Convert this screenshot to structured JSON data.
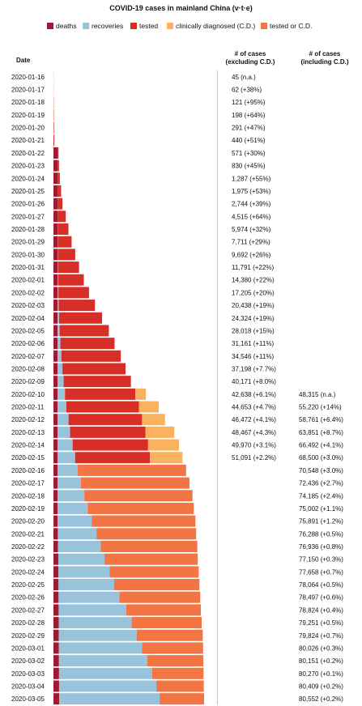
{
  "colors": {
    "deaths": "#9e1a32",
    "recoveries": "#99c3db",
    "tested": "#d72f27",
    "clinically_diagnosed": "#f9b35f",
    "tested_or_cd": "#f37543"
  },
  "chart_data": {
    "type": "bar",
    "orientation": "horizontal",
    "stacked": true,
    "title": "COVID-19 cases in mainland China (v·t·e)",
    "legend": [
      "deaths",
      "recoveries",
      "tested",
      "clinically diagnosed (C.D.)",
      "tested or C.D."
    ],
    "legend_position": "top",
    "headers": {
      "date": "Date",
      "excluding": "# of cases (excluding C.D.)",
      "including": "# of cases (including C.D.)"
    },
    "rows": [
      {
        "date": "2020-01-16",
        "deaths": 0,
        "recoveries": 0,
        "tested": 45,
        "cd": 0,
        "tested_or_cd": 0,
        "excl_label": "45 (n.a.)",
        "incl_label": ""
      },
      {
        "date": "2020-01-17",
        "deaths": 0,
        "recoveries": 0,
        "tested": 62,
        "cd": 0,
        "tested_or_cd": 0,
        "excl_label": "62 (+38%)",
        "incl_label": ""
      },
      {
        "date": "2020-01-18",
        "deaths": 0,
        "recoveries": 0,
        "tested": 121,
        "cd": 0,
        "tested_or_cd": 0,
        "excl_label": "121 (+95%)",
        "incl_label": ""
      },
      {
        "date": "2020-01-19",
        "deaths": 0,
        "recoveries": 0,
        "tested": 198,
        "cd": 0,
        "tested_or_cd": 0,
        "excl_label": "198 (+64%)",
        "incl_label": ""
      },
      {
        "date": "2020-01-20",
        "deaths": 0,
        "recoveries": 0,
        "tested": 291,
        "cd": 0,
        "tested_or_cd": 0,
        "excl_label": "291 (+47%)",
        "incl_label": ""
      },
      {
        "date": "2020-01-21",
        "deaths": 0,
        "recoveries": 0,
        "tested": 440,
        "cd": 0,
        "tested_or_cd": 0,
        "excl_label": "440 (+51%)",
        "incl_label": ""
      },
      {
        "date": "2020-01-22",
        "deaths": 17,
        "recoveries": 28,
        "tested": 526,
        "cd": 0,
        "tested_or_cd": 0,
        "excl_label": "571 (+30%)",
        "incl_label": ""
      },
      {
        "date": "2020-01-23",
        "deaths": 25,
        "recoveries": 34,
        "tested": 771,
        "cd": 0,
        "tested_or_cd": 0,
        "excl_label": "830 (+45%)",
        "incl_label": ""
      },
      {
        "date": "2020-01-24",
        "deaths": 41,
        "recoveries": 38,
        "tested": 1208,
        "cd": 0,
        "tested_or_cd": 0,
        "excl_label": "1,287 (+55%)",
        "incl_label": ""
      },
      {
        "date": "2020-01-25",
        "deaths": 56,
        "recoveries": 49,
        "tested": 1870,
        "cd": 0,
        "tested_or_cd": 0,
        "excl_label": "1,975 (+53%)",
        "incl_label": ""
      },
      {
        "date": "2020-01-26",
        "deaths": 80,
        "recoveries": 51,
        "tested": 2613,
        "cd": 0,
        "tested_or_cd": 0,
        "excl_label": "2,744 (+39%)",
        "incl_label": ""
      },
      {
        "date": "2020-01-27",
        "deaths": 106,
        "recoveries": 60,
        "tested": 4349,
        "cd": 0,
        "tested_or_cd": 0,
        "excl_label": "4,515 (+64%)",
        "incl_label": ""
      },
      {
        "date": "2020-01-28",
        "deaths": 132,
        "recoveries": 103,
        "tested": 5739,
        "cd": 0,
        "tested_or_cd": 0,
        "excl_label": "5,974 (+32%)",
        "incl_label": ""
      },
      {
        "date": "2020-01-29",
        "deaths": 170,
        "recoveries": 124,
        "tested": 7417,
        "cd": 0,
        "tested_or_cd": 0,
        "excl_label": "7,711 (+29%)",
        "incl_label": ""
      },
      {
        "date": "2020-01-30",
        "deaths": 213,
        "recoveries": 171,
        "tested": 9308,
        "cd": 0,
        "tested_or_cd": 0,
        "excl_label": "9,692 (+26%)",
        "incl_label": ""
      },
      {
        "date": "2020-01-31",
        "deaths": 259,
        "recoveries": 243,
        "tested": 11289,
        "cd": 0,
        "tested_or_cd": 0,
        "excl_label": "11,791 (+22%)",
        "incl_label": ""
      },
      {
        "date": "2020-02-01",
        "deaths": 304,
        "recoveries": 328,
        "tested": 13748,
        "cd": 0,
        "tested_or_cd": 0,
        "excl_label": "14,380 (+22%)",
        "incl_label": ""
      },
      {
        "date": "2020-02-02",
        "deaths": 361,
        "recoveries": 475,
        "tested": 16369,
        "cd": 0,
        "tested_or_cd": 0,
        "excl_label": "17,205 (+20%)",
        "incl_label": ""
      },
      {
        "date": "2020-02-03",
        "deaths": 425,
        "recoveries": 632,
        "tested": 19381,
        "cd": 0,
        "tested_or_cd": 0,
        "excl_label": "20,438 (+19%)",
        "incl_label": ""
      },
      {
        "date": "2020-02-04",
        "deaths": 490,
        "recoveries": 892,
        "tested": 22942,
        "cd": 0,
        "tested_or_cd": 0,
        "excl_label": "24,324 (+19%)",
        "incl_label": ""
      },
      {
        "date": "2020-02-05",
        "deaths": 563,
        "recoveries": 1153,
        "tested": 26302,
        "cd": 0,
        "tested_or_cd": 0,
        "excl_label": "28,018 (+15%)",
        "incl_label": ""
      },
      {
        "date": "2020-02-06",
        "deaths": 636,
        "recoveries": 1540,
        "tested": 28985,
        "cd": 0,
        "tested_or_cd": 0,
        "excl_label": "31,161 (+11%)",
        "incl_label": ""
      },
      {
        "date": "2020-02-07",
        "deaths": 722,
        "recoveries": 2050,
        "tested": 31774,
        "cd": 0,
        "tested_or_cd": 0,
        "excl_label": "34,546 (+11%)",
        "incl_label": ""
      },
      {
        "date": "2020-02-08",
        "deaths": 811,
        "recoveries": 2649,
        "tested": 33738,
        "cd": 0,
        "tested_or_cd": 0,
        "excl_label": "37,198 (+7.7%)",
        "incl_label": ""
      },
      {
        "date": "2020-02-09",
        "deaths": 908,
        "recoveries": 3281,
        "tested": 35982,
        "cd": 0,
        "tested_or_cd": 0,
        "excl_label": "40,171 (+8.0%)",
        "incl_label": ""
      },
      {
        "date": "2020-02-10",
        "deaths": 1016,
        "recoveries": 3996,
        "tested": 37626,
        "cd": 5677,
        "tested_or_cd": 0,
        "excl_label": "42,638 (+6.1%)",
        "incl_label": "48,315 (n.a.)"
      },
      {
        "date": "2020-02-11",
        "deaths": 1113,
        "recoveries": 4740,
        "tested": 38800,
        "cd": 10567,
        "tested_or_cd": 0,
        "excl_label": "44,653 (+4.7%)",
        "incl_label": "55,220 (+14%)"
      },
      {
        "date": "2020-02-12",
        "deaths": 1259,
        "recoveries": 5911,
        "tested": 39302,
        "cd": 12289,
        "tested_or_cd": 0,
        "excl_label": "46,472 (+4.1%)",
        "incl_label": "58,761 (+6.4%)"
      },
      {
        "date": "2020-02-13",
        "deaths": 1380,
        "recoveries": 6723,
        "tested": 40364,
        "cd": 15384,
        "tested_or_cd": 0,
        "excl_label": "48,467 (+4.3%)",
        "incl_label": "63,851 (+8.7%)"
      },
      {
        "date": "2020-02-14",
        "deaths": 1523,
        "recoveries": 8096,
        "tested": 40351,
        "cd": 16522,
        "tested_or_cd": 0,
        "excl_label": "49,970 (+3.1%)",
        "incl_label": "66,492 (+4.1%)"
      },
      {
        "date": "2020-02-15",
        "deaths": 1665,
        "recoveries": 9419,
        "tested": 40007,
        "cd": 17409,
        "tested_or_cd": 0,
        "excl_label": "51,091 (+2.2%)",
        "incl_label": "68,500 (+3.0%)"
      },
      {
        "date": "2020-02-16",
        "deaths": 1770,
        "recoveries": 10844,
        "tested": 0,
        "cd": 0,
        "tested_or_cd": 57934,
        "excl_label": "",
        "incl_label": "70,548 (+3.0%)"
      },
      {
        "date": "2020-02-17",
        "deaths": 1868,
        "recoveries": 12552,
        "tested": 0,
        "cd": 0,
        "tested_or_cd": 58016,
        "excl_label": "",
        "incl_label": "72,436 (+2.7%)"
      },
      {
        "date": "2020-02-18",
        "deaths": 2004,
        "recoveries": 14376,
        "tested": 0,
        "cd": 0,
        "tested_or_cd": 57805,
        "excl_label": "",
        "incl_label": "74,185 (+2.4%)"
      },
      {
        "date": "2020-02-19",
        "deaths": 2118,
        "recoveries": 16155,
        "tested": 0,
        "cd": 0,
        "tested_or_cd": 56729,
        "excl_label": "",
        "incl_label": "75,002 (+1.1%)"
      },
      {
        "date": "2020-02-20",
        "deaths": 2236,
        "recoveries": 18264,
        "tested": 0,
        "cd": 0,
        "tested_or_cd": 55391,
        "excl_label": "",
        "incl_label": "75,891 (+1.2%)"
      },
      {
        "date": "2020-02-21",
        "deaths": 2345,
        "recoveries": 20659,
        "tested": 0,
        "cd": 0,
        "tested_or_cd": 53284,
        "excl_label": "",
        "incl_label": "76,288 (+0.5%)"
      },
      {
        "date": "2020-02-22",
        "deaths": 2442,
        "recoveries": 22888,
        "tested": 0,
        "cd": 0,
        "tested_or_cd": 51606,
        "excl_label": "",
        "incl_label": "76,936 (+0.8%)"
      },
      {
        "date": "2020-02-23",
        "deaths": 2592,
        "recoveries": 24734,
        "tested": 0,
        "cd": 0,
        "tested_or_cd": 49824,
        "excl_label": "",
        "incl_label": "77,150 (+0.3%)"
      },
      {
        "date": "2020-02-24",
        "deaths": 2663,
        "recoveries": 27323,
        "tested": 0,
        "cd": 0,
        "tested_or_cd": 47672,
        "excl_label": "",
        "incl_label": "77,658 (+0.7%)"
      },
      {
        "date": "2020-02-25",
        "deaths": 2715,
        "recoveries": 29745,
        "tested": 0,
        "cd": 0,
        "tested_or_cd": 45604,
        "excl_label": "",
        "incl_label": "78,064 (+0.5%)"
      },
      {
        "date": "2020-02-26",
        "deaths": 2744,
        "recoveries": 32495,
        "tested": 0,
        "cd": 0,
        "tested_or_cd": 43258,
        "excl_label": "",
        "incl_label": "78,497 (+0.6%)"
      },
      {
        "date": "2020-02-27",
        "deaths": 2788,
        "recoveries": 36117,
        "tested": 0,
        "cd": 0,
        "tested_or_cd": 39919,
        "excl_label": "",
        "incl_label": "78,824 (+0.4%)"
      },
      {
        "date": "2020-02-28",
        "deaths": 2835,
        "recoveries": 39002,
        "tested": 0,
        "cd": 0,
        "tested_or_cd": 37414,
        "excl_label": "",
        "incl_label": "79,251 (+0.5%)"
      },
      {
        "date": "2020-02-29",
        "deaths": 2870,
        "recoveries": 41625,
        "tested": 0,
        "cd": 0,
        "tested_or_cd": 35329,
        "excl_label": "",
        "incl_label": "79,824 (+0.7%)"
      },
      {
        "date": "2020-03-01",
        "deaths": 2912,
        "recoveries": 44462,
        "tested": 0,
        "cd": 0,
        "tested_or_cd": 32652,
        "excl_label": "",
        "incl_label": "80,026 (+0.3%)"
      },
      {
        "date": "2020-03-02",
        "deaths": 2943,
        "recoveries": 47204,
        "tested": 0,
        "cd": 0,
        "tested_or_cd": 30004,
        "excl_label": "",
        "incl_label": "80,151 (+0.2%)"
      },
      {
        "date": "2020-03-03",
        "deaths": 2981,
        "recoveries": 49856,
        "tested": 0,
        "cd": 0,
        "tested_or_cd": 27433,
        "excl_label": "",
        "incl_label": "80,270 (+0.1%)"
      },
      {
        "date": "2020-03-04",
        "deaths": 3012,
        "recoveries": 52045,
        "tested": 0,
        "cd": 0,
        "tested_or_cd": 25352,
        "excl_label": "",
        "incl_label": "80,409 (+0.2%)"
      },
      {
        "date": "2020-03-05",
        "deaths": 3042,
        "recoveries": 53726,
        "tested": 0,
        "cd": 0,
        "tested_or_cd": 23784,
        "excl_label": "",
        "incl_label": "80,552 (+0.2%)"
      }
    ]
  }
}
